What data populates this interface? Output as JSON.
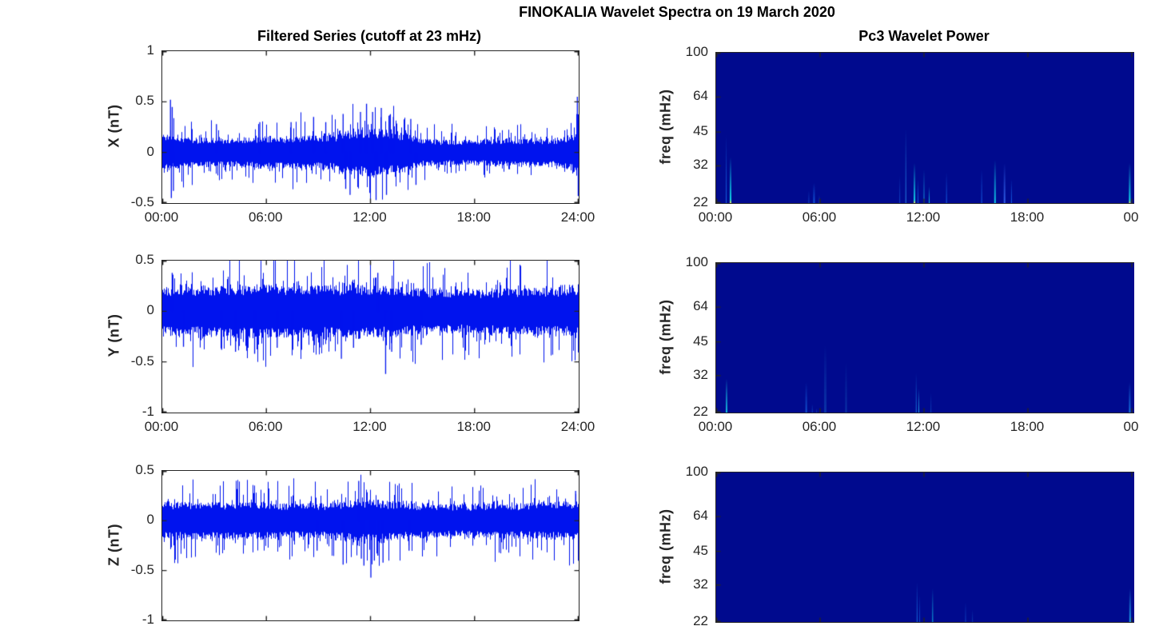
{
  "figure": {
    "suptitle": "FINOKALIA Wavelet Spectra on 19 March 2020",
    "axis_color": "#262626",
    "tick_text_color": "#262626"
  },
  "columns": [
    {
      "title": "Filtered Series (cutoff at 23 mHz)"
    },
    {
      "title": "Pc3 Wavelet Power"
    }
  ],
  "chart_data": [
    {
      "type": "line",
      "ylabel": "X (nT)",
      "ylim": [
        -0.5,
        1
      ],
      "yticks": [
        1,
        0.5,
        0,
        -0.5
      ],
      "ytick_labels": [
        "1",
        "0.5",
        "0",
        "-0.5"
      ],
      "xticks_hours": [
        0,
        6,
        12,
        18,
        24
      ],
      "xtick_labels": [
        "00:00",
        "06:00",
        "12:00",
        "18:00",
        "24:00"
      ],
      "show_xticklabels": true,
      "line_color": "#0013ee",
      "envelope_hourly_nT": [
        0.18,
        0.15,
        0.14,
        0.14,
        0.14,
        0.15,
        0.16,
        0.15,
        0.16,
        0.16,
        0.17,
        0.21,
        0.23,
        0.21,
        0.19,
        0.13,
        0.12,
        0.12,
        0.12,
        0.13,
        0.13,
        0.13,
        0.13,
        0.14,
        0.21
      ],
      "spikes": [
        [
          0.45,
          0.52
        ],
        [
          0.5,
          -0.45
        ],
        [
          0.55,
          0.45
        ],
        [
          0.62,
          -0.38
        ],
        [
          3.1,
          0.28
        ],
        [
          5.6,
          0.3
        ],
        [
          7.4,
          0.3
        ],
        [
          8.7,
          0.35
        ],
        [
          9.4,
          0.3
        ],
        [
          10.4,
          0.38
        ],
        [
          10.55,
          -0.36
        ],
        [
          10.8,
          -0.42
        ],
        [
          11.4,
          0.4
        ],
        [
          11.75,
          0.48
        ],
        [
          12.1,
          0.4
        ],
        [
          12.3,
          -0.47
        ],
        [
          12.6,
          0.44
        ],
        [
          12.9,
          -0.42
        ],
        [
          13.1,
          0.37
        ],
        [
          13.3,
          0.35
        ],
        [
          14.3,
          0.33
        ],
        [
          14.6,
          -0.32
        ],
        [
          23.9,
          0.55
        ],
        [
          23.95,
          -0.43
        ]
      ],
      "seed": 11
    },
    {
      "type": "heatmap",
      "ylabel": "freq (mHz)",
      "freq_ticks": [
        100,
        64,
        45,
        32,
        22
      ],
      "ytick_labels": [
        "100",
        "64",
        "45",
        "32",
        "22"
      ],
      "freq_range_mHz": [
        22,
        100
      ],
      "scale": "log",
      "xticks_hours": [
        0,
        6,
        12,
        18,
        24
      ],
      "xtick_labels": [
        "00:00",
        "06:00",
        "12:00",
        "18:00",
        "00"
      ],
      "show_xticklabels": true,
      "background": "#000a8e",
      "hot_base_color": "#dce860",
      "events": [
        {
          "t": 0.58,
          "fmax": 44,
          "color": "#1565e8",
          "w": 1,
          "hot": false
        },
        {
          "t": 0.83,
          "fmax": 35,
          "color": "#10d8e8",
          "w": 2,
          "hot": true
        },
        {
          "t": 5.35,
          "fmax": 25,
          "color": "#1048c8",
          "w": 1,
          "hot": false
        },
        {
          "t": 5.65,
          "fmax": 27,
          "color": "#1155d8",
          "w": 2,
          "hot": false
        },
        {
          "t": 5.95,
          "fmax": 24,
          "color": "#0f40b8",
          "w": 1,
          "hot": false
        },
        {
          "t": 10.6,
          "fmax": 29,
          "color": "#1048c8",
          "w": 1,
          "hot": false
        },
        {
          "t": 10.95,
          "fmax": 47,
          "color": "#2585e8",
          "w": 1,
          "hot": false
        },
        {
          "t": 11.45,
          "fmax": 33,
          "color": "#10d0e8",
          "w": 2,
          "hot": true
        },
        {
          "t": 11.65,
          "fmax": 28,
          "color": "#1565e8",
          "w": 1,
          "hot": false
        },
        {
          "t": 12.0,
          "fmax": 31,
          "color": "#18a8e8",
          "w": 1,
          "hot": false
        },
        {
          "t": 12.3,
          "fmax": 26,
          "color": "#10c8e8",
          "w": 1,
          "hot": false
        },
        {
          "t": 13.3,
          "fmax": 30,
          "color": "#1565e8",
          "w": 1,
          "hot": false
        },
        {
          "t": 15.33,
          "fmax": 31,
          "color": "#1565e8",
          "w": 1,
          "hot": false
        },
        {
          "t": 16.1,
          "fmax": 34,
          "color": "#10c8e8",
          "w": 2,
          "hot": false
        },
        {
          "t": 16.65,
          "fmax": 33,
          "color": "#3060e8",
          "w": 2,
          "hot": false
        },
        {
          "t": 17.05,
          "fmax": 28,
          "color": "#1565e8",
          "w": 1,
          "hot": false
        },
        {
          "t": 23.88,
          "fmax": 33,
          "color": "#10e0f0",
          "w": 2,
          "hot": true
        }
      ]
    },
    {
      "type": "line",
      "ylabel": "Y (nT)",
      "ylim": [
        -1,
        0.5
      ],
      "yticks": [
        0.5,
        0,
        -0.5,
        -1
      ],
      "ytick_labels": [
        "0.5",
        "0",
        "-0.5",
        "-1"
      ],
      "xticks_hours": [
        0,
        6,
        12,
        18,
        24
      ],
      "xtick_labels": [
        "00:00",
        "06:00",
        "12:00",
        "18:00",
        "24:00"
      ],
      "show_xticklabels": true,
      "line_color": "#0013ee",
      "envelope_hourly_nT": [
        0.24,
        0.25,
        0.24,
        0.24,
        0.25,
        0.26,
        0.26,
        0.25,
        0.25,
        0.25,
        0.25,
        0.26,
        0.26,
        0.24,
        0.23,
        0.22,
        0.21,
        0.21,
        0.21,
        0.21,
        0.22,
        0.22,
        0.23,
        0.23,
        0.24
      ],
      "spikes": [
        [
          0.55,
          0.38
        ],
        [
          1.2,
          -0.35
        ],
        [
          3.4,
          -0.38
        ],
        [
          4.2,
          -0.4
        ],
        [
          5.3,
          -0.42
        ],
        [
          6.6,
          -0.36
        ],
        [
          7.5,
          -0.35
        ],
        [
          10.3,
          -0.47
        ],
        [
          11.0,
          -0.36
        ],
        [
          12.4,
          0.38
        ],
        [
          12.85,
          -0.62
        ],
        [
          13.2,
          -0.4
        ],
        [
          14.9,
          -0.33
        ]
      ],
      "seed": 22
    },
    {
      "type": "heatmap",
      "ylabel": "freq (mHz)",
      "freq_ticks": [
        100,
        64,
        45,
        32,
        22
      ],
      "ytick_labels": [
        "100",
        "64",
        "45",
        "32",
        "22"
      ],
      "freq_range_mHz": [
        22,
        100
      ],
      "scale": "log",
      "xticks_hours": [
        0,
        6,
        12,
        18,
        24
      ],
      "xtick_labels": [
        "00:00",
        "06:00",
        "12:00",
        "18:00",
        "00"
      ],
      "show_xticklabels": true,
      "background": "#000a8e",
      "hot_base_color": "#dce860",
      "events": [
        {
          "t": 0.6,
          "fmax": 31,
          "color": "#15c0e0",
          "w": 2,
          "hot": false
        },
        {
          "t": 5.2,
          "fmax": 30,
          "color": "#1150d0",
          "w": 2,
          "hot": false
        },
        {
          "t": 5.55,
          "fmax": 24,
          "color": "#0f44c0",
          "w": 1,
          "hot": false
        },
        {
          "t": 5.8,
          "fmax": 23,
          "color": "#0d3cb0",
          "w": 1,
          "hot": false
        },
        {
          "t": 6.3,
          "fmax": 44,
          "color": "#0a34a8",
          "w": 3,
          "hot": false
        },
        {
          "t": 7.5,
          "fmax": 37,
          "color": "#0a34a8",
          "w": 2,
          "hot": false
        },
        {
          "t": 11.55,
          "fmax": 33,
          "color": "#1575e0",
          "w": 1,
          "hot": false
        },
        {
          "t": 11.7,
          "fmax": 28,
          "color": "#25a8e8",
          "w": 1,
          "hot": false
        },
        {
          "t": 12.4,
          "fmax": 27,
          "color": "#0d40b8",
          "w": 1,
          "hot": false
        },
        {
          "t": 23.88,
          "fmax": 30,
          "color": "#1575e0",
          "w": 2,
          "hot": false
        }
      ]
    },
    {
      "type": "line",
      "ylabel": "Z (nT)",
      "ylim": [
        -1,
        0.5
      ],
      "yticks": [
        0.5,
        0,
        -0.5,
        -1
      ],
      "ytick_labels": [
        "0.5",
        "0",
        "-0.5",
        "-1"
      ],
      "xticks_hours": [
        0,
        6,
        12,
        18,
        24
      ],
      "xtick_labels": [],
      "show_xticklabels": false,
      "line_color": "#0013ee",
      "envelope_hourly_nT": [
        0.17,
        0.18,
        0.18,
        0.18,
        0.18,
        0.18,
        0.18,
        0.17,
        0.17,
        0.17,
        0.18,
        0.2,
        0.21,
        0.19,
        0.18,
        0.17,
        0.16,
        0.16,
        0.16,
        0.17,
        0.17,
        0.17,
        0.18,
        0.18,
        0.19
      ],
      "spikes": [
        [
          8.9,
          -0.3
        ],
        [
          10.4,
          -0.44
        ],
        [
          11.3,
          0.4
        ],
        [
          11.45,
          -0.38
        ],
        [
          11.6,
          -0.45
        ],
        [
          12.0,
          -0.57
        ],
        [
          12.2,
          -0.4
        ],
        [
          12.4,
          -0.35
        ],
        [
          12.7,
          -0.42
        ],
        [
          14.2,
          -0.3
        ],
        [
          23.8,
          0.3
        ]
      ],
      "seed": 33
    },
    {
      "type": "heatmap",
      "ylabel": "freq (mHz)",
      "freq_ticks": [
        100,
        64,
        45,
        32,
        22
      ],
      "ytick_labels": [
        "100",
        "64",
        "45",
        "32",
        "22"
      ],
      "freq_range_mHz": [
        22,
        100
      ],
      "scale": "log",
      "xticks_hours": [
        0,
        6,
        12,
        18,
        24
      ],
      "xtick_labels": [],
      "show_xticklabels": false,
      "background": "#000a8e",
      "hot_base_color": "#dce860",
      "events": [
        {
          "t": 11.6,
          "fmax": 33,
          "color": "#1570e0",
          "w": 1,
          "hot": false
        },
        {
          "t": 11.75,
          "fmax": 29,
          "color": "#1150d0",
          "w": 1,
          "hot": false
        },
        {
          "t": 12.5,
          "fmax": 31,
          "color": "#10c0e8",
          "w": 1,
          "hot": false
        },
        {
          "t": 14.4,
          "fmax": 27,
          "color": "#0f48c8",
          "w": 1,
          "hot": false
        },
        {
          "t": 14.8,
          "fmax": 25,
          "color": "#0d3cb0",
          "w": 1,
          "hot": false
        },
        {
          "t": 23.9,
          "fmax": 31,
          "color": "#20a0e8",
          "w": 2,
          "hot": false
        }
      ]
    }
  ]
}
